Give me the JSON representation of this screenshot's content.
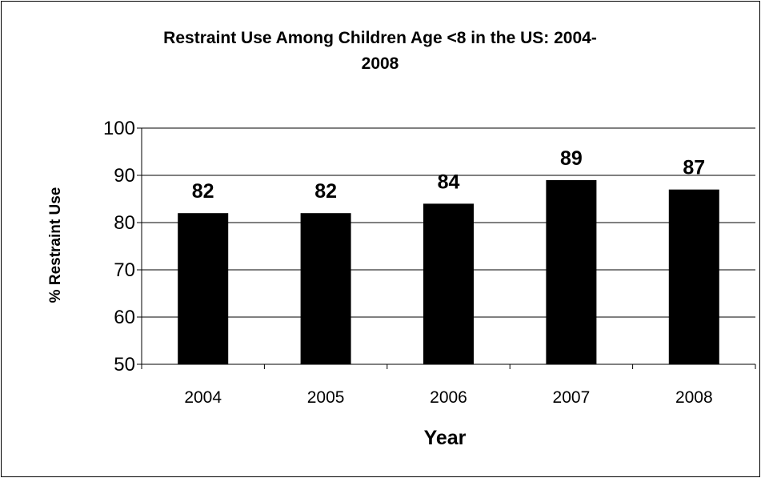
{
  "chart_data": {
    "type": "bar",
    "title_lines": [
      "Restraint Use Among Children Age <8 in the US: 2004-",
      "2008"
    ],
    "xlabel": "Year",
    "ylabel": "% Restraint Use",
    "categories": [
      "2004",
      "2005",
      "2006",
      "2007",
      "2008"
    ],
    "values": [
      82,
      82,
      84,
      89,
      87
    ],
    "data_labels": [
      "82",
      "82",
      "84",
      "89",
      "87"
    ],
    "ylim": [
      50,
      100
    ],
    "yticks": [
      "50",
      "60",
      "70",
      "80",
      "90",
      "100"
    ],
    "grid": true,
    "legend": "none",
    "bar_color": "#000000"
  }
}
